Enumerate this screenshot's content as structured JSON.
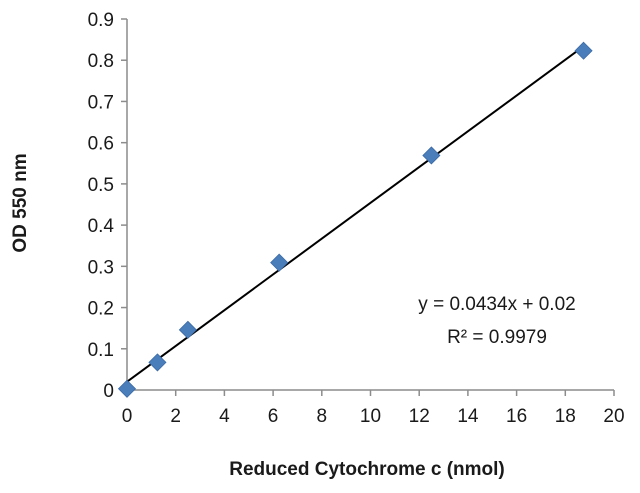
{
  "chart_data": {
    "type": "scatter",
    "title": "",
    "xlabel": "Reduced Cytochrome c (nmol)",
    "ylabel": "OD 550 nm",
    "xlim": [
      0,
      20
    ],
    "ylim": [
      0,
      0.9
    ],
    "x_ticks": [
      "0",
      "2",
      "4",
      "6",
      "8",
      "10",
      "12",
      "14",
      "16",
      "18",
      "20"
    ],
    "y_ticks": [
      "0",
      "0.1",
      "0.2",
      "0.3",
      "0.4",
      "0.5",
      "0.6",
      "0.7",
      "0.8",
      "0.9"
    ],
    "grid": false,
    "legend": "none",
    "series": [
      {
        "marker": "diamond",
        "color": "#4a7ebb",
        "points": [
          {
            "x": 0,
            "y": 0.003
          },
          {
            "x": 1.25,
            "y": 0.067
          },
          {
            "x": 2.5,
            "y": 0.146
          },
          {
            "x": 6.25,
            "y": 0.309
          },
          {
            "x": 12.5,
            "y": 0.569
          },
          {
            "x": 18.75,
            "y": 0.823
          }
        ]
      }
    ],
    "trendline": {
      "type": "linear",
      "slope": 0.0434,
      "intercept": 0.02,
      "x_range": [
        0,
        18.75
      ],
      "color": "#000000"
    },
    "annotations": {
      "equation": "y = 0.0434x + 0.02",
      "r_squared": "R² = 0.9979"
    }
  }
}
